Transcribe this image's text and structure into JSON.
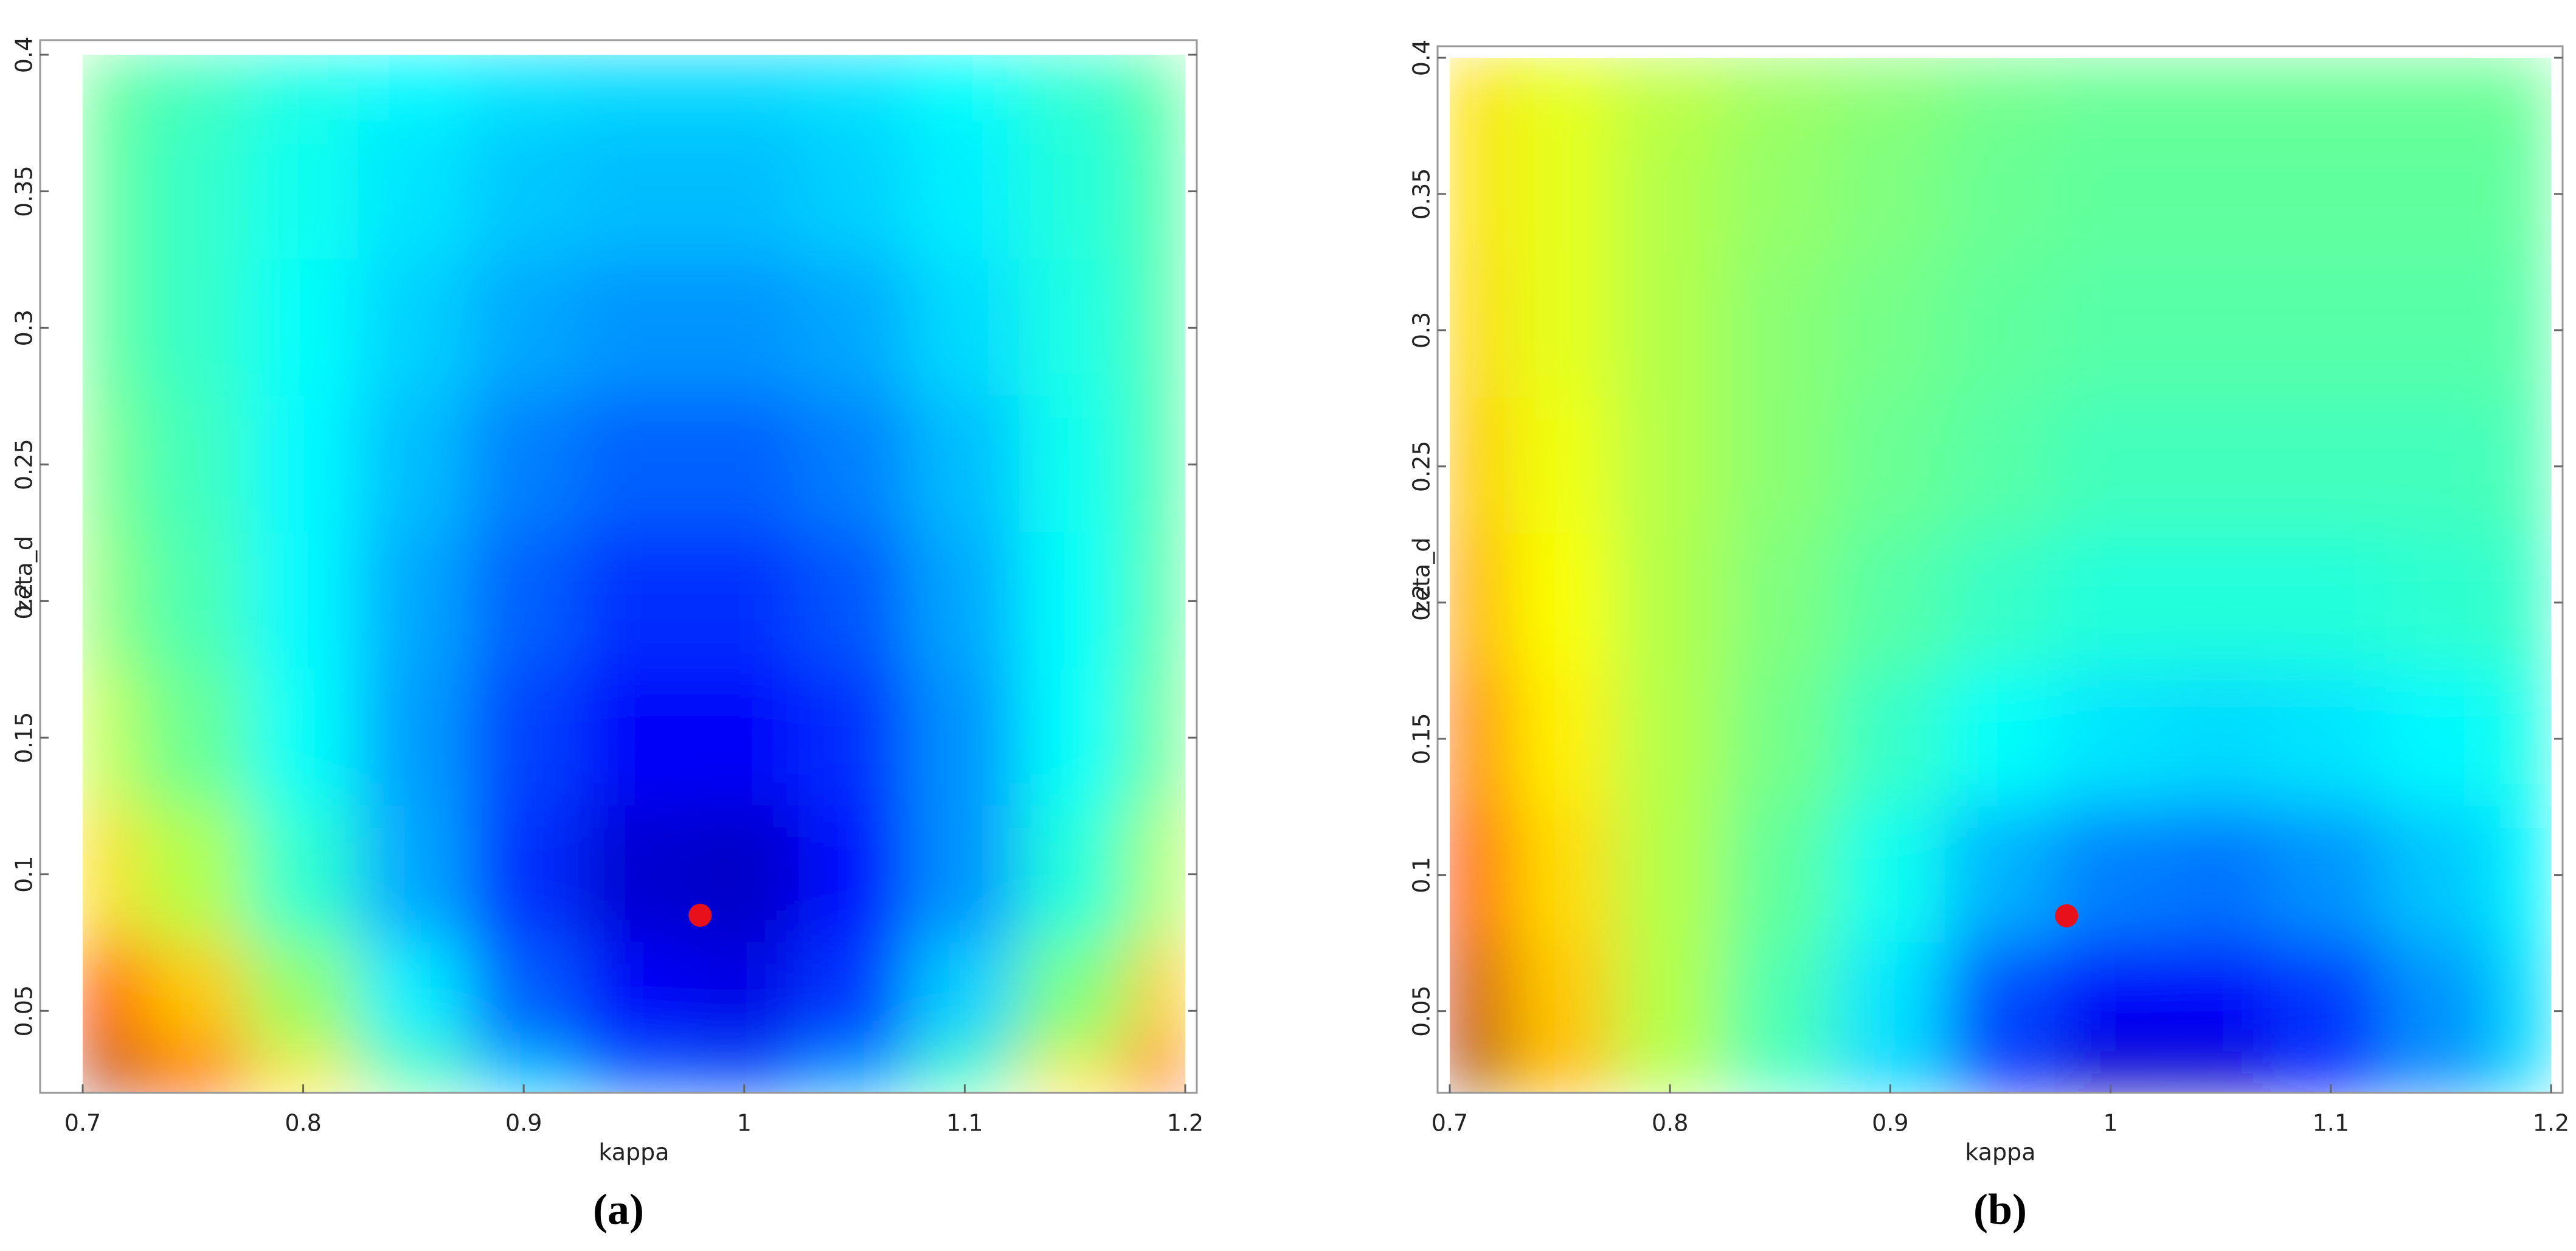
{
  "chart_data": [
    {
      "type": "contour",
      "caption": "(a)",
      "xlabel": "kappa",
      "ylabel": "zeta_d",
      "colormap": "jet",
      "xlim": [
        0.7,
        1.2
      ],
      "ylim": [
        0.02,
        0.4
      ],
      "xticks": [
        0.7,
        0.8,
        0.9,
        1,
        1.1,
        1.2
      ],
      "yticks": [
        0.05,
        0.1,
        0.15,
        0.2,
        0.25,
        0.3,
        0.35,
        0.4
      ],
      "x": [
        0.7,
        0.75,
        0.8,
        0.85,
        0.9,
        0.95,
        1,
        1.05,
        1.1,
        1.15,
        1.2
      ],
      "y": [
        0.4,
        0.35,
        0.3,
        0.25,
        0.2,
        0.15,
        0.1,
        0.05,
        0.02
      ],
      "z": [
        [
          0.48,
          0.44,
          0.4,
          0.37,
          0.35,
          0.34,
          0.34,
          0.35,
          0.38,
          0.42,
          0.47
        ],
        [
          0.48,
          0.43,
          0.39,
          0.35,
          0.32,
          0.31,
          0.31,
          0.33,
          0.36,
          0.41,
          0.46
        ],
        [
          0.48,
          0.43,
          0.38,
          0.33,
          0.29,
          0.27,
          0.27,
          0.29,
          0.34,
          0.4,
          0.46
        ],
        [
          0.5,
          0.44,
          0.37,
          0.31,
          0.25,
          0.22,
          0.22,
          0.25,
          0.31,
          0.39,
          0.46
        ],
        [
          0.52,
          0.45,
          0.37,
          0.29,
          0.22,
          0.17,
          0.17,
          0.21,
          0.29,
          0.38,
          0.47
        ],
        [
          0.57,
          0.48,
          0.38,
          0.28,
          0.19,
          0.12,
          0.12,
          0.17,
          0.27,
          0.38,
          0.49
        ],
        [
          0.66,
          0.55,
          0.42,
          0.29,
          0.17,
          0.08,
          0.07,
          0.14,
          0.27,
          0.41,
          0.55
        ],
        [
          0.82,
          0.68,
          0.52,
          0.36,
          0.22,
          0.12,
          0.1,
          0.18,
          0.33,
          0.5,
          0.68
        ],
        [
          1.0,
          0.83,
          0.65,
          0.47,
          0.32,
          0.22,
          0.2,
          0.28,
          0.45,
          0.65,
          0.86
        ]
      ],
      "point": {
        "x": 0.98,
        "y": 0.085,
        "color": "#e8101a"
      }
    },
    {
      "type": "contour",
      "caption": "(b)",
      "xlabel": "kappa",
      "ylabel": "zeta_d",
      "colormap": "jet",
      "xlim": [
        0.7,
        1.2
      ],
      "ylim": [
        0.02,
        0.4
      ],
      "xticks": [
        0.7,
        0.8,
        0.9,
        1,
        1.1,
        1.2
      ],
      "yticks": [
        0.05,
        0.1,
        0.15,
        0.2,
        0.25,
        0.3,
        0.35,
        0.4
      ],
      "x": [
        0.7,
        0.75,
        0.8,
        0.85,
        0.9,
        0.95,
        1,
        1.05,
        1.1,
        1.15,
        1.2
      ],
      "y": [
        0.4,
        0.35,
        0.3,
        0.25,
        0.2,
        0.15,
        0.1,
        0.05,
        0.02
      ],
      "z": [
        [
          0.66,
          0.6,
          0.56,
          0.53,
          0.51,
          0.49,
          0.48,
          0.48,
          0.48,
          0.48,
          0.48
        ],
        [
          0.66,
          0.6,
          0.55,
          0.52,
          0.5,
          0.48,
          0.47,
          0.47,
          0.47,
          0.47,
          0.47
        ],
        [
          0.67,
          0.6,
          0.55,
          0.51,
          0.49,
          0.47,
          0.46,
          0.46,
          0.46,
          0.46,
          0.46
        ],
        [
          0.69,
          0.61,
          0.55,
          0.51,
          0.48,
          0.46,
          0.44,
          0.44,
          0.44,
          0.44,
          0.45
        ],
        [
          0.72,
          0.62,
          0.55,
          0.5,
          0.46,
          0.43,
          0.41,
          0.41,
          0.41,
          0.42,
          0.43
        ],
        [
          0.77,
          0.64,
          0.55,
          0.49,
          0.43,
          0.38,
          0.35,
          0.34,
          0.35,
          0.37,
          0.4
        ],
        [
          0.84,
          0.66,
          0.55,
          0.47,
          0.39,
          0.3,
          0.25,
          0.24,
          0.27,
          0.32,
          0.37
        ],
        [
          0.93,
          0.68,
          0.55,
          0.45,
          0.35,
          0.2,
          0.12,
          0.12,
          0.18,
          0.27,
          0.35
        ],
        [
          1.0,
          0.7,
          0.55,
          0.44,
          0.33,
          0.14,
          0.05,
          0.06,
          0.14,
          0.25,
          0.34
        ]
      ],
      "point": {
        "x": 0.98,
        "y": 0.085,
        "color": "#e8101a"
      }
    }
  ]
}
